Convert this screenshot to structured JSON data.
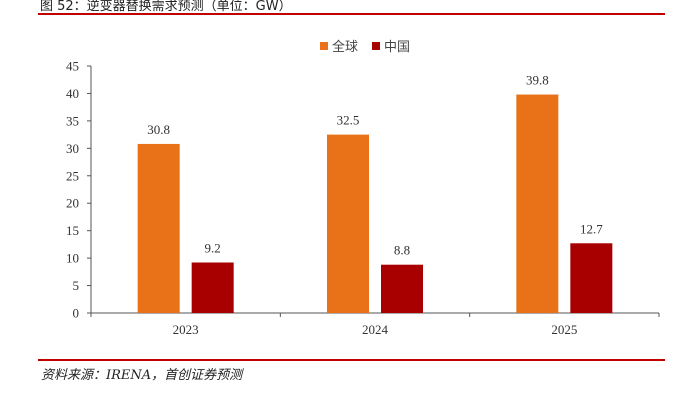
{
  "header": {
    "title": "图 52：逆变器替换需求预测（单位：GW）"
  },
  "footer": {
    "source": "资料来源：IRENA，首创证券预测"
  },
  "colors": {
    "accent_rule": "#c00000",
    "global": "#e97117",
    "china": "#a80000",
    "axis": "#555555"
  },
  "chart_data": {
    "type": "bar",
    "title": "",
    "xlabel": "",
    "ylabel": "",
    "categories": [
      "2023",
      "2024",
      "2025"
    ],
    "series": [
      {
        "name": "全球",
        "values": [
          30.8,
          32.5,
          39.8
        ],
        "labels": [
          "30.8",
          "32.5",
          "39.8"
        ],
        "color": "#e97117"
      },
      {
        "name": "中国",
        "values": [
          9.2,
          8.8,
          12.7
        ],
        "labels": [
          "9.2",
          "8.8",
          "12.7"
        ],
        "color": "#a80000"
      }
    ],
    "ylim": [
      0,
      45
    ],
    "yticks": [
      0,
      5,
      10,
      15,
      20,
      25,
      30,
      35,
      40,
      45
    ],
    "grid": false,
    "legend": "top-center"
  }
}
